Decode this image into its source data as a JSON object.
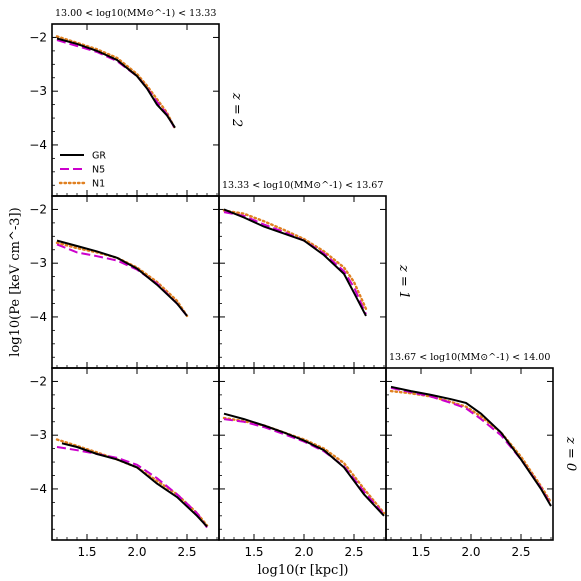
{
  "figure": {
    "ylabel": "log10(Pe [keV cm^-3])",
    "xlabel": "log10(r [kpc])",
    "mass_bins": [
      "13.00 < log10(MM⊙^-1) < 13.33",
      "13.33 < log10(MM⊙^-1) < 13.67",
      "13.67 < log10(MM⊙^-1) < 14.00"
    ],
    "redshift_labels": [
      "z = 2",
      "z = 1",
      "z = 0"
    ],
    "legend": [
      "GR",
      "N5",
      "N1"
    ],
    "colors": {
      "GR": "#000000",
      "N5": "#cc00cc",
      "N1": "#e08020"
    },
    "x_ticks": [
      "1.5",
      "2.0",
      "2.5"
    ],
    "y_ticks": [
      "−2",
      "−3",
      "−4"
    ]
  },
  "chart_data": [
    {
      "type": "line",
      "row": 0,
      "col": 0,
      "title": "13.00 < log10(MM⊙^-1) < 13.33",
      "xlim": [
        1.15,
        2.82
      ],
      "ylim": [
        -4.95,
        -1.75
      ],
      "series": [
        {
          "name": "GR",
          "x": [
            1.2,
            1.4,
            1.6,
            1.8,
            2.0,
            2.1,
            2.2,
            2.3,
            2.38
          ],
          "y": [
            -2.02,
            -2.12,
            -2.25,
            -2.42,
            -2.72,
            -2.95,
            -3.25,
            -3.45,
            -3.68
          ]
        },
        {
          "name": "N5",
          "x": [
            1.2,
            1.4,
            1.6,
            1.8,
            2.0,
            2.1,
            2.2,
            2.3,
            2.38
          ],
          "y": [
            -2.05,
            -2.16,
            -2.27,
            -2.44,
            -2.72,
            -2.94,
            -3.2,
            -3.43,
            -3.7
          ]
        },
        {
          "name": "N1",
          "x": [
            1.2,
            1.4,
            1.6,
            1.8,
            2.0,
            2.1,
            2.2,
            2.3,
            2.38
          ],
          "y": [
            -1.98,
            -2.1,
            -2.22,
            -2.38,
            -2.68,
            -2.9,
            -3.15,
            -3.4,
            -3.7
          ]
        }
      ]
    },
    {
      "type": "line",
      "row": 1,
      "col": 0,
      "xlim": [
        1.15,
        2.82
      ],
      "ylim": [
        -4.95,
        -1.75
      ],
      "series": [
        {
          "name": "GR",
          "x": [
            1.2,
            1.4,
            1.6,
            1.8,
            2.0,
            2.2,
            2.4,
            2.5
          ],
          "y": [
            -2.58,
            -2.68,
            -2.78,
            -2.9,
            -3.1,
            -3.4,
            -3.75,
            -3.98
          ]
        },
        {
          "name": "N5",
          "x": [
            1.2,
            1.4,
            1.6,
            1.8,
            2.0,
            2.2,
            2.4,
            2.5
          ],
          "y": [
            -2.65,
            -2.8,
            -2.87,
            -2.95,
            -3.12,
            -3.38,
            -3.75,
            -3.98
          ]
        },
        {
          "name": "N1",
          "x": [
            1.2,
            1.4,
            1.6,
            1.8,
            2.0,
            2.2,
            2.4,
            2.5
          ],
          "y": [
            -2.62,
            -2.72,
            -2.8,
            -2.9,
            -3.08,
            -3.35,
            -3.7,
            -3.98
          ]
        }
      ]
    },
    {
      "type": "line",
      "row": 1,
      "col": 1,
      "title": "13.33 < log10(MM⊙^-1) < 13.67",
      "xlim": [
        1.15,
        2.82
      ],
      "ylim": [
        -4.95,
        -1.75
      ],
      "series": [
        {
          "name": "GR",
          "x": [
            1.2,
            1.4,
            1.6,
            1.8,
            2.0,
            2.2,
            2.4,
            2.5,
            2.62
          ],
          "y": [
            -2.0,
            -2.15,
            -2.32,
            -2.45,
            -2.58,
            -2.85,
            -3.2,
            -3.55,
            -3.98
          ]
        },
        {
          "name": "N5",
          "x": [
            1.2,
            1.4,
            1.6,
            1.8,
            2.0,
            2.2,
            2.4,
            2.5,
            2.62
          ],
          "y": [
            -2.05,
            -2.12,
            -2.28,
            -2.42,
            -2.58,
            -2.82,
            -3.15,
            -3.45,
            -3.95
          ]
        },
        {
          "name": "N1",
          "x": [
            1.2,
            1.4,
            1.6,
            1.8,
            2.0,
            2.2,
            2.4,
            2.5,
            2.62
          ],
          "y": [
            -2.02,
            -2.08,
            -2.22,
            -2.38,
            -2.55,
            -2.78,
            -3.08,
            -3.35,
            -3.85
          ]
        }
      ]
    },
    {
      "type": "line",
      "row": 2,
      "col": 0,
      "xlim": [
        1.15,
        2.82
      ],
      "ylim": [
        -4.95,
        -1.75
      ],
      "series": [
        {
          "name": "GR",
          "x": [
            1.25,
            1.4,
            1.6,
            1.8,
            2.0,
            2.2,
            2.4,
            2.6,
            2.7
          ],
          "y": [
            -3.15,
            -3.22,
            -3.35,
            -3.45,
            -3.6,
            -3.9,
            -4.15,
            -4.5,
            -4.7
          ]
        },
        {
          "name": "N5",
          "x": [
            1.2,
            1.4,
            1.6,
            1.8,
            2.0,
            2.2,
            2.4,
            2.6,
            2.7
          ],
          "y": [
            -3.22,
            -3.28,
            -3.35,
            -3.42,
            -3.55,
            -3.8,
            -4.1,
            -4.45,
            -4.72
          ]
        },
        {
          "name": "N1",
          "x": [
            1.2,
            1.4,
            1.6,
            1.8,
            2.0,
            2.2,
            2.4,
            2.6,
            2.7
          ],
          "y": [
            -3.08,
            -3.2,
            -3.32,
            -3.45,
            -3.6,
            -3.85,
            -4.1,
            -4.45,
            -4.68
          ]
        }
      ]
    },
    {
      "type": "line",
      "row": 2,
      "col": 1,
      "xlim": [
        1.15,
        2.82
      ],
      "ylim": [
        -4.95,
        -1.75
      ],
      "series": [
        {
          "name": "GR",
          "x": [
            1.2,
            1.4,
            1.6,
            1.8,
            2.0,
            2.2,
            2.4,
            2.6,
            2.8
          ],
          "y": [
            -2.6,
            -2.7,
            -2.82,
            -2.95,
            -3.1,
            -3.28,
            -3.6,
            -4.1,
            -4.5
          ]
        },
        {
          "name": "N5",
          "x": [
            1.2,
            1.4,
            1.6,
            1.8,
            2.0,
            2.2,
            2.4,
            2.6,
            2.8
          ],
          "y": [
            -2.7,
            -2.75,
            -2.85,
            -2.98,
            -3.12,
            -3.3,
            -3.58,
            -4.05,
            -4.48
          ]
        },
        {
          "name": "N1",
          "x": [
            1.2,
            1.4,
            1.6,
            1.8,
            2.0,
            2.2,
            2.4,
            2.6,
            2.8
          ],
          "y": [
            -2.68,
            -2.74,
            -2.82,
            -2.95,
            -3.08,
            -3.25,
            -3.52,
            -4.0,
            -4.45
          ]
        }
      ]
    },
    {
      "type": "line",
      "row": 2,
      "col": 2,
      "title": "13.67 < log10(MM⊙^-1) < 14.00",
      "xlim": [
        1.15,
        2.82
      ],
      "ylim": [
        -4.95,
        -1.75
      ],
      "series": [
        {
          "name": "GR",
          "x": [
            1.2,
            1.4,
            1.6,
            1.8,
            1.95,
            2.1,
            2.3,
            2.5,
            2.7,
            2.8
          ],
          "y": [
            -2.1,
            -2.18,
            -2.25,
            -2.33,
            -2.4,
            -2.6,
            -2.95,
            -3.45,
            -4.0,
            -4.32
          ]
        },
        {
          "name": "N5",
          "x": [
            1.2,
            1.4,
            1.6,
            1.8,
            1.95,
            2.1,
            2.3,
            2.5,
            2.7,
            2.8
          ],
          "y": [
            -2.12,
            -2.2,
            -2.28,
            -2.4,
            -2.5,
            -2.7,
            -3.0,
            -3.45,
            -3.98,
            -4.3
          ]
        },
        {
          "name": "N1",
          "x": [
            1.2,
            1.4,
            1.6,
            1.8,
            1.95,
            2.1,
            2.3,
            2.5,
            2.7,
            2.8
          ],
          "y": [
            -2.18,
            -2.22,
            -2.28,
            -2.38,
            -2.47,
            -2.65,
            -2.95,
            -3.4,
            -3.95,
            -4.25
          ]
        }
      ]
    }
  ]
}
